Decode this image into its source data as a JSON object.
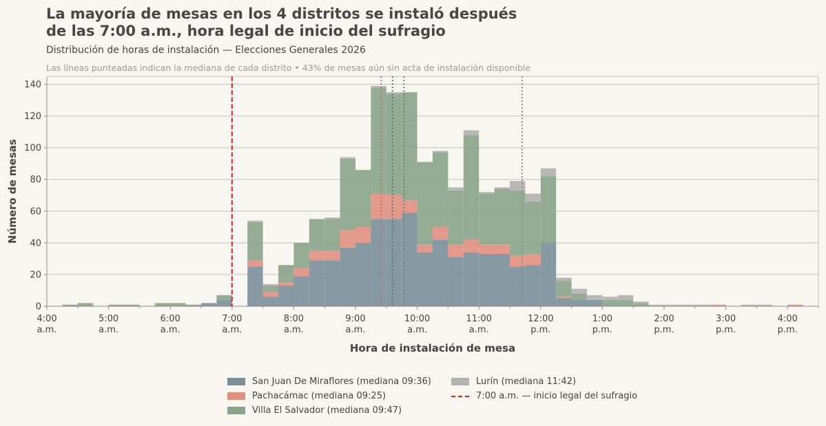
{
  "title_lines": [
    "La mayoría de mesas en los 4 distritos se instaló después",
    "de las 7:00 a.m., hora legal de inicio del sufragio"
  ],
  "subtitle": "Distribución de horas de instalación — Elecciones Generales 2026",
  "note": "Las líneas punteadas indican la mediana de cada distrito  •  43% de mesas aún sin acta de instalación disponible",
  "colors": {
    "sjm": "#7a8f9a",
    "pachacamac": "#e1907f",
    "villa": "#88a48a",
    "lurin": "#b1b1b1",
    "legal_line": "#d62020"
  },
  "chart_data": {
    "type": "bar",
    "stacked": true,
    "bin_minutes": 15,
    "x_start": "04:00",
    "xlim": [
      "04:00",
      "16:30"
    ],
    "ylim": [
      0,
      145
    ],
    "ylabel": "Número de mesas",
    "xlabel": "Hora de instalación de mesa",
    "yticks": [
      0,
      20,
      40,
      60,
      80,
      100,
      120,
      140
    ],
    "xticks": [
      {
        "t": "04:00",
        "l1": "4:00",
        "l2": "a.m."
      },
      {
        "t": "05:00",
        "l1": "5:00",
        "l2": "a.m."
      },
      {
        "t": "06:00",
        "l1": "6:00",
        "l2": "a.m."
      },
      {
        "t": "07:00",
        "l1": "7:00",
        "l2": "a.m."
      },
      {
        "t": "08:00",
        "l1": "8:00",
        "l2": "a.m."
      },
      {
        "t": "09:00",
        "l1": "9:00",
        "l2": "a.m."
      },
      {
        "t": "10:00",
        "l1": "10:00",
        "l2": "a.m."
      },
      {
        "t": "11:00",
        "l1": "11:00",
        "l2": "a.m."
      },
      {
        "t": "12:00",
        "l1": "12:00",
        "l2": "p.m."
      },
      {
        "t": "13:00",
        "l1": "1:00",
        "l2": "p.m."
      },
      {
        "t": "14:00",
        "l1": "2:00",
        "l2": "p.m."
      },
      {
        "t": "15:00",
        "l1": "3:00",
        "l2": "p.m."
      },
      {
        "t": "16:00",
        "l1": "4:00",
        "l2": "p.m."
      }
    ],
    "grid": true,
    "legend_position": "bottom-center",
    "series": [
      {
        "name": "San Juan De Miraflores",
        "median": "09:36",
        "color_key": "sjm",
        "values": [
          0,
          0,
          0,
          0,
          0,
          0,
          0,
          0,
          0,
          0,
          2,
          4,
          0,
          25,
          6,
          13,
          19,
          29,
          29,
          37,
          40,
          55,
          55,
          59,
          34,
          42,
          31,
          34,
          33,
          33,
          25,
          26,
          40,
          5,
          4,
          4,
          0,
          0,
          0,
          0,
          0,
          0,
          0,
          0,
          0,
          0,
          0,
          0,
          0,
          0
        ]
      },
      {
        "name": "Pachacámac",
        "median": "09:25",
        "color_key": "pachacamac",
        "values": [
          0,
          0,
          0,
          0,
          0,
          0,
          0,
          0,
          0,
          0,
          0,
          0,
          0,
          4,
          3,
          2,
          5,
          6,
          6,
          11,
          10,
          16,
          15,
          8,
          5,
          8,
          8,
          8,
          6,
          6,
          7,
          7,
          0,
          1,
          0,
          0,
          0,
          0,
          0,
          0,
          0,
          0,
          0,
          1,
          0,
          0,
          0,
          0,
          1,
          0
        ]
      },
      {
        "name": "Villa El Salvador",
        "median": "09:47",
        "color_key": "villa",
        "values": [
          0,
          1,
          2,
          0,
          1,
          1,
          0,
          2,
          2,
          1,
          0,
          3,
          0,
          24,
          4,
          11,
          16,
          20,
          20,
          45,
          36,
          67,
          64,
          68,
          52,
          47,
          34,
          66,
          32,
          35,
          41,
          33,
          42,
          10,
          4,
          0,
          4,
          4,
          2,
          0,
          0,
          0,
          0,
          0,
          0,
          0,
          0,
          0,
          0,
          0
        ]
      },
      {
        "name": "Lurín",
        "median": "11:42",
        "color_key": "lurin",
        "values": [
          0,
          0,
          0,
          0,
          0,
          0,
          0,
          0,
          0,
          0,
          0,
          0,
          0,
          1,
          1,
          0,
          0,
          0,
          1,
          1,
          0,
          1,
          1,
          0,
          0,
          1,
          2,
          3,
          1,
          1,
          6,
          5,
          5,
          2,
          3,
          3,
          2,
          3,
          1,
          1,
          1,
          1,
          1,
          0,
          0,
          1,
          1,
          0,
          0,
          0
        ]
      }
    ],
    "reference_line": {
      "x": "07:00",
      "label": "7:00 a.m. — inicio legal del sufragio"
    }
  },
  "legend": [
    {
      "label": "San Juan De Miraflores (mediana 09:36)",
      "color_key": "sjm"
    },
    {
      "label": "Lurín (mediana 11:42)",
      "color_key": "lurin"
    },
    {
      "label": "Pachacámac (mediana 09:25)",
      "color_key": "pachacamac"
    },
    {
      "label": "7:00 a.m. — inicio legal del sufragio",
      "color_key": "legal_line",
      "is_line": true
    },
    {
      "label": "Villa El Salvador (mediana 09:47)",
      "color_key": "villa"
    }
  ]
}
